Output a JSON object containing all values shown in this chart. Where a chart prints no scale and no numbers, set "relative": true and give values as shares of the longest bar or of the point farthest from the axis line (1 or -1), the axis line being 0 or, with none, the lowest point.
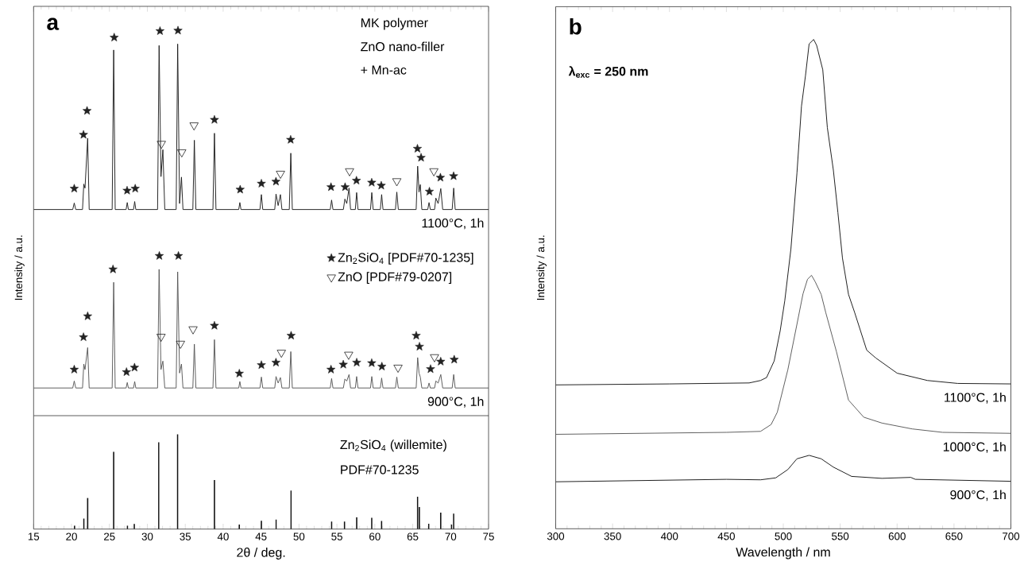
{
  "chart_data": [
    {
      "type": "line",
      "relative": true,
      "xlim": [
        15,
        75
      ],
      "xticks": [
        15,
        20,
        25,
        30,
        35,
        40,
        45,
        50,
        55,
        60,
        65,
        70,
        75
      ],
      "xlabel": "2θ / deg.",
      "ylabel": "Intensity / a.u.",
      "legend": "right",
      "annotations": [
        "a",
        "MK polymer",
        "ZnO nano-filler",
        "+ Mn-ac",
        "Zn$_{2}$SiO$_{4}$ (willemite)",
        "PDF#70-1235"
      ],
      "ref_lines": [
        {
          "axis": "y",
          "value": 0.2275,
          "color": "#333333"
        }
      ],
      "x": [
        15,
        20.16,
        20.36,
        20.56,
        21.45,
        21.62,
        21.78,
        22.13,
        22.33,
        25.36,
        25.56,
        25.76,
        27.2,
        27.35,
        27.5,
        28.18,
        28.33,
        28.48,
        31.35,
        31.55,
        31.8,
        32.05,
        32.3,
        33.8,
        34.0,
        34.25,
        34.5,
        34.7,
        36.0,
        36.2,
        36.4,
        38.65,
        38.85,
        39.05,
        42.05,
        42.2,
        42.35,
        44.85,
        45.04,
        45.22,
        46.8,
        46.97,
        47.25,
        47.55,
        47.75,
        48.72,
        48.92,
        49.12,
        54.12,
        54.3,
        54.48,
        55.85,
        56.05,
        56.3,
        56.6,
        56.8,
        57.43,
        57.6,
        57.78,
        59.43,
        59.6,
        59.78,
        60.73,
        60.9,
        61.08,
        62.72,
        62.9,
        63.1,
        65.45,
        65.65,
        65.83,
        66.0,
        66.2,
        66.98,
        67.15,
        67.32,
        67.88,
        68.05,
        68.35,
        68.7,
        68.95,
        70.2,
        70.4,
        70.6,
        75
      ],
      "series": [
        {
          "name": "1100°C, 1h",
          "color": "#1a1a1a",
          "values": [
            0.641,
            0.641,
            0.654,
            0.641,
            0.641,
            0.692,
            0.684,
            0.784,
            0.641,
            0.641,
            0.961,
            0.641,
            0.641,
            0.655,
            0.641,
            0.641,
            0.657,
            0.641,
            0.641,
            0.97,
            0.707,
            0.761,
            0.641,
            0.641,
            0.973,
            0.653,
            0.706,
            0.641,
            0.641,
            0.78,
            0.641,
            0.641,
            0.794,
            0.641,
            0.641,
            0.655,
            0.641,
            0.641,
            0.671,
            0.641,
            0.641,
            0.672,
            0.649,
            0.671,
            0.641,
            0.641,
            0.754,
            0.641,
            0.641,
            0.66,
            0.641,
            0.641,
            0.662,
            0.653,
            0.684,
            0.641,
            0.641,
            0.675,
            0.641,
            0.641,
            0.675,
            0.641,
            0.641,
            0.671,
            0.641,
            0.641,
            0.676,
            0.641,
            0.641,
            0.728,
            0.676,
            0.691,
            0.641,
            0.641,
            0.655,
            0.641,
            0.641,
            0.664,
            0.653,
            0.683,
            0.641,
            0.641,
            0.684,
            0.641,
            0.641
          ]
        },
        {
          "name": "900°C, 1h",
          "color": "#555555",
          "values": [
            0.283,
            0.283,
            0.297,
            0.283,
            0.283,
            0.331,
            0.32,
            0.364,
            0.283,
            0.283,
            0.495,
            0.283,
            0.283,
            0.294,
            0.283,
            0.283,
            0.296,
            0.283,
            0.283,
            0.521,
            0.32,
            0.337,
            0.283,
            0.283,
            0.516,
            0.313,
            0.331,
            0.283,
            0.283,
            0.371,
            0.283,
            0.283,
            0.38,
            0.283,
            0.283,
            0.296,
            0.283,
            0.283,
            0.305,
            0.283,
            0.283,
            0.306,
            0.293,
            0.304,
            0.283,
            0.283,
            0.356,
            0.283,
            0.283,
            0.302,
            0.283,
            0.283,
            0.301,
            0.297,
            0.31,
            0.283,
            0.283,
            0.306,
            0.283,
            0.283,
            0.306,
            0.283,
            0.283,
            0.303,
            0.283,
            0.283,
            0.305,
            0.283,
            0.283,
            0.344,
            0.313,
            0.305,
            0.283,
            0.283,
            0.293,
            0.283,
            0.283,
            0.297,
            0.293,
            0.31,
            0.283,
            0.283,
            0.31,
            0.283,
            0.283
          ]
        },
        {
          "type": "scatter",
          "name": "Zn$_{2}$SiO$_{4}$ [PDF#70-1235]",
          "color": "#222222",
          "marker": "star",
          "x": [
            20.36,
            21.58,
            22.05,
            25.63,
            27.33,
            28.4,
            31.67,
            34.04,
            38.85,
            42.24,
            45.04,
            46.96,
            48.9,
            54.22,
            56.08,
            57.58,
            59.59,
            60.85,
            65.62,
            66.1,
            67.2,
            68.65,
            70.39,
            20.36,
            21.58,
            22.13,
            25.47,
            27.25,
            28.31,
            31.58,
            34.1,
            38.85,
            42.13,
            45.04,
            46.96,
            48.96,
            54.22,
            55.84,
            57.61,
            59.59,
            60.93,
            65.46,
            65.89,
            67.35,
            68.69,
            70.47
          ],
          "values": [
            0.683,
            0.791,
            0.839,
            0.986,
            0.679,
            0.683,
            0.999,
            1,
            0.821,
            0.681,
            0.693,
            0.697,
            0.781,
            0.686,
            0.686,
            0.699,
            0.695,
            0.689,
            0.763,
            0.745,
            0.677,
            0.705,
            0.708,
            0.32,
            0.385,
            0.427,
            0.521,
            0.315,
            0.324,
            0.548,
            0.548,
            0.408,
            0.312,
            0.329,
            0.334,
            0.388,
            0.32,
            0.33,
            0.334,
            0.333,
            0.326,
            0.388,
            0.366,
            0.321,
            0.336,
            0.34
          ]
        },
        {
          "type": "scatter",
          "name": "ZnO [PDF#79-0207]",
          "color": "#222222",
          "marker": "triangle",
          "x": [
            31.85,
            34.54,
            36.16,
            47.56,
            56.67,
            62.9,
            67.79,
            31.81,
            34.37,
            36.03,
            47.68,
            56.55,
            63.06,
            67.87
          ],
          "values": [
            0.773,
            0.756,
            0.81,
            0.713,
            0.718,
            0.698,
            0.718,
            0.386,
            0.372,
            0.401,
            0.354,
            0.35,
            0.324,
            0.345
          ]
        },
        {
          "type": "bar",
          "color": "#111111",
          "x": [
            20.4,
            21.62,
            22.13,
            25.56,
            27.37,
            28.28,
            31.51,
            33.99,
            38.85,
            42.13,
            45.04,
            46.97,
            48.94,
            54.3,
            56.0,
            57.61,
            59.59,
            60.89,
            65.63,
            65.87,
            67.12,
            68.69,
            70.11,
            70.39
          ],
          "values": [
            0.0072,
            0.0209,
            0.0624,
            0.1548,
            0.0072,
            0.0103,
            0.174,
            0.1902,
            0.0983,
            0.0089,
            0.0167,
            0.0192,
            0.0774,
            0.015,
            0.015,
            0.024,
            0.0228,
            0.0162,
            0.0649,
            0.0443,
            0.0108,
            0.0331,
            0.0089,
            0.0312
          ]
        }
      ]
    },
    {
      "type": "line",
      "relative": true,
      "xlim": [
        300,
        700
      ],
      "xticks": [
        300,
        350,
        400,
        450,
        500,
        550,
        600,
        650,
        700
      ],
      "xlabel": "Wavelength / nm",
      "ylabel": "Intensity / a.u.",
      "annotations": [
        "b",
        "λ$_{exc}$ = 250 nm"
      ],
      "series": [
        {
          "name": "1100°C, 1h",
          "color": "#111111",
          "x": [
            300,
            400,
            470,
            480,
            485.3,
            492,
            497.3,
            501.3,
            506.7,
            512,
            516,
            519.5,
            522.7,
            526.7,
            529.3,
            534.7,
            538.7,
            544,
            548,
            552,
            557.3,
            562.7,
            573.3,
            581.3,
            600,
            626.7,
            653.3,
            700
          ],
          "values": [
            0.294,
            0.296,
            0.298,
            0.303,
            0.309,
            0.343,
            0.405,
            0.466,
            0.572,
            0.727,
            0.864,
            0.926,
            0.991,
            1,
            0.988,
            0.938,
            0.82,
            0.733,
            0.646,
            0.553,
            0.479,
            0.442,
            0.365,
            0.349,
            0.318,
            0.303,
            0.297,
            0.296
          ]
        },
        {
          "name": "1000°C, 1h",
          "color": "#555555",
          "x": [
            300,
            450,
            480,
            489.3,
            494.7,
            504,
            512,
            517.3,
            521.3,
            524.8,
            528,
            533.3,
            537.3,
            546.7,
            557.3,
            570.7,
            586.7,
            613.3,
            640,
            700
          ],
          "values": [
            0.193,
            0.197,
            0.199,
            0.213,
            0.238,
            0.325,
            0.418,
            0.48,
            0.51,
            0.518,
            0.505,
            0.479,
            0.442,
            0.362,
            0.263,
            0.228,
            0.216,
            0.204,
            0.197,
            0.195
          ]
        },
        {
          "name": "900°C, 1h",
          "color": "#111111",
          "x": [
            300,
            450,
            480,
            493.3,
            504,
            512,
            522.7,
            533.3,
            544,
            560,
            586.7,
            612,
            616,
            700
          ],
          "values": [
            0.096,
            0.101,
            0.1,
            0.104,
            0.121,
            0.143,
            0.15,
            0.143,
            0.126,
            0.107,
            0.103,
            0.105,
            0.101,
            0.097
          ]
        }
      ]
    }
  ]
}
